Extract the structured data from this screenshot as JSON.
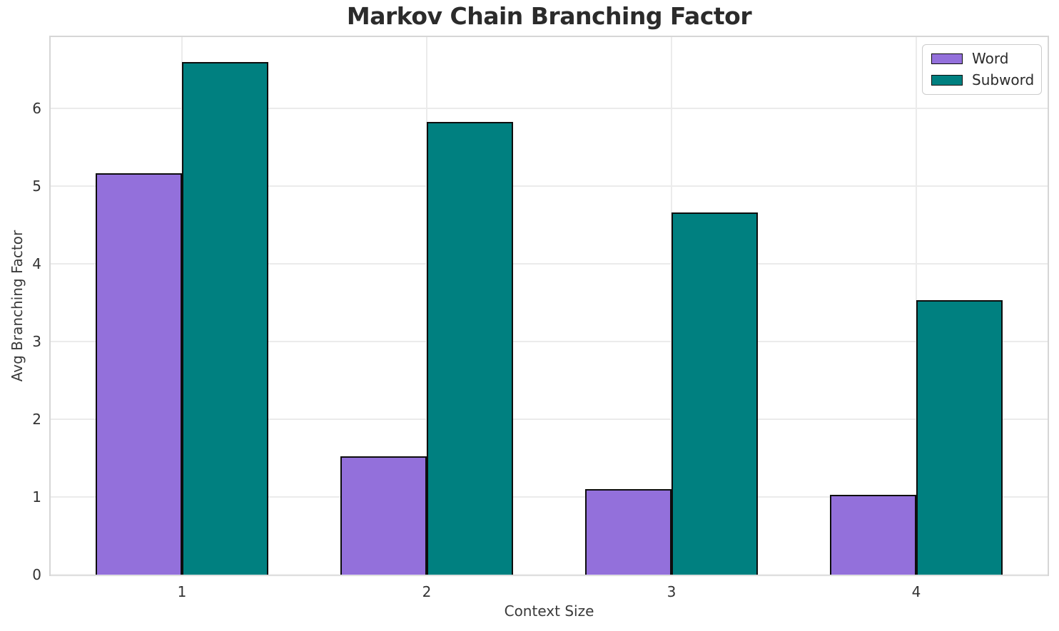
{
  "chart_data": {
    "type": "bar",
    "title": "Markov Chain Branching Factor",
    "xlabel": "Context Size",
    "ylabel": "Avg Branching Factor",
    "categories": [
      "1",
      "2",
      "3",
      "4"
    ],
    "series": [
      {
        "name": "Word",
        "color": "#9370db",
        "values": [
          5.17,
          1.52,
          1.1,
          1.03
        ]
      },
      {
        "name": "Subword",
        "color": "#008080",
        "values": [
          6.6,
          5.83,
          4.66,
          3.53
        ]
      }
    ],
    "ylim": [
      0,
      6.92
    ],
    "yticks": [
      0,
      1,
      2,
      3,
      4,
      5,
      6
    ],
    "grid": true,
    "bar_edge_color": "#0d0d0d",
    "legend_position": "upper right"
  }
}
